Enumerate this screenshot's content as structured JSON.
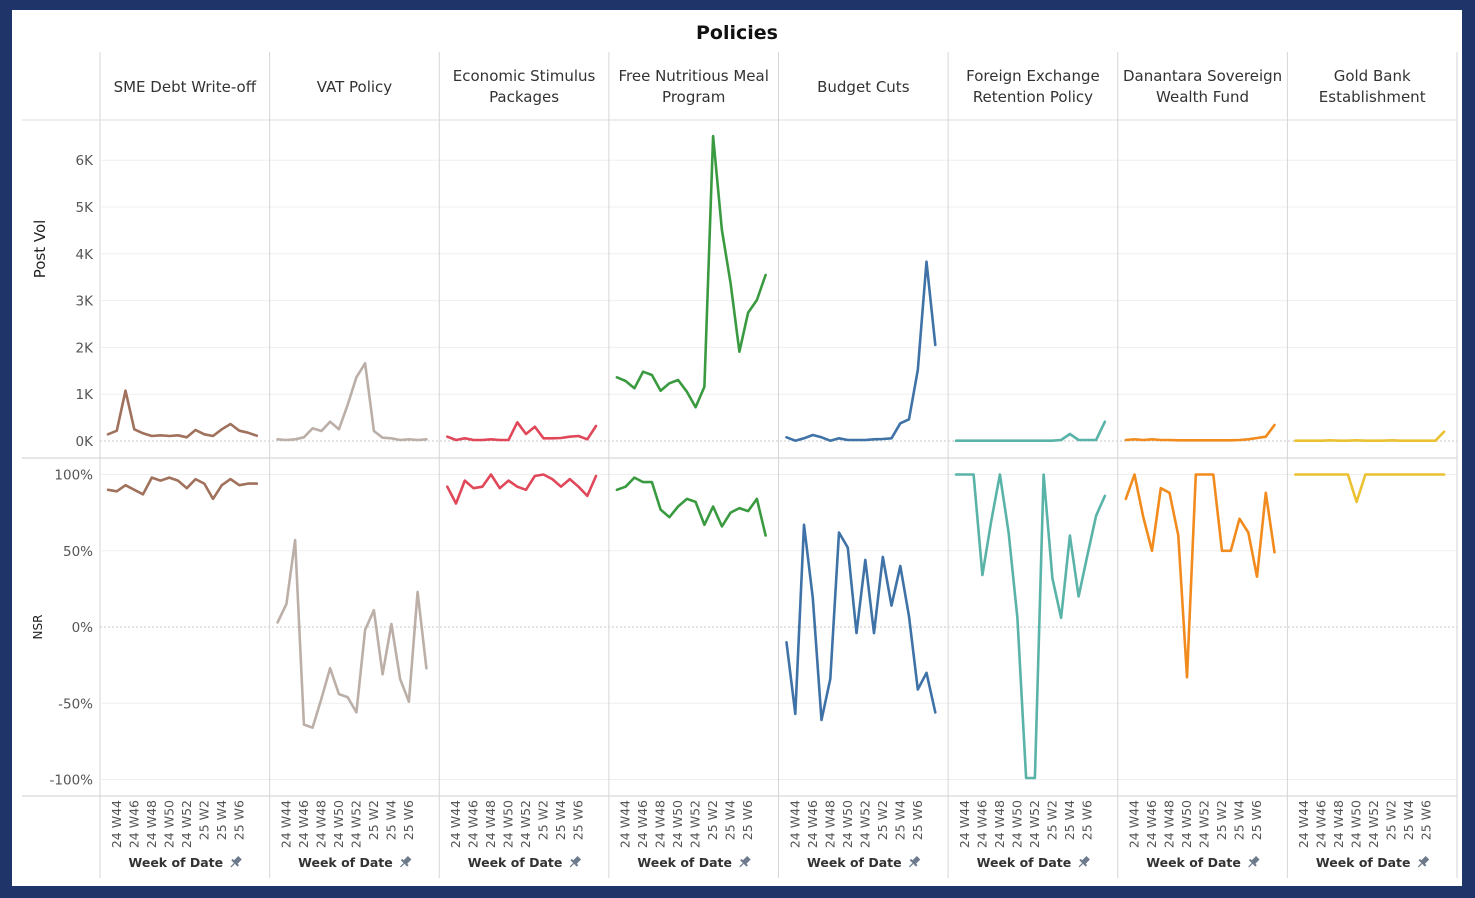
{
  "chart_data": {
    "type": "line",
    "title": "Policies",
    "layout": "small-multiples",
    "x": [
      "24 W43",
      "24 W44",
      "24 W45",
      "24 W46",
      "24 W47",
      "24 W48",
      "24 W49",
      "24 W50",
      "24 W51",
      "24 W52",
      "25 W1",
      "25 W2",
      "25 W3",
      "25 W4",
      "25 W5",
      "25 W6",
      "25 W7",
      "25 W8"
    ],
    "x_tick_labels": [
      "24 W44",
      "24 W46",
      "24 W48",
      "24 W50",
      "24 W52",
      "25 W2",
      "25 W4",
      "25 W6"
    ],
    "xlabel": "Week of Date",
    "xlabel_icon": "pin-icon",
    "rows": [
      {
        "key": "post_vol",
        "ylabel": "Post Vol",
        "ylim": [
          0,
          6000
        ],
        "ticks": [
          0,
          1000,
          2000,
          3000,
          4000,
          5000,
          6000
        ],
        "tick_labels": [
          "0K",
          "1K",
          "2K",
          "3K",
          "4K",
          "5K",
          "6K"
        ]
      },
      {
        "key": "nsr",
        "ylabel": "NSR",
        "ylim": [
          -100,
          100
        ],
        "ticks": [
          -100,
          -50,
          0,
          50,
          100
        ],
        "tick_labels": [
          "-100%",
          "-50%",
          "0%",
          "50%",
          "100%"
        ]
      }
    ],
    "grid": true,
    "series": [
      {
        "name": "SME Debt Write-off",
        "header_lines": [
          "SME Debt Write-off"
        ],
        "color": "#a0715c",
        "post_vol": [
          143,
          220,
          1075,
          250,
          165,
          107,
          122,
          107,
          122,
          79,
          235,
          143,
          107,
          250,
          363,
          220,
          177,
          113
        ],
        "nsr": [
          90,
          89,
          93,
          90,
          87,
          98,
          96,
          98,
          96,
          91,
          97,
          94,
          84,
          93,
          97,
          93,
          94,
          94
        ]
      },
      {
        "name": "VAT Policy",
        "header_lines": [
          "VAT Policy"
        ],
        "color": "#bcafa8",
        "post_vol": [
          36,
          21,
          36,
          79,
          271,
          214,
          412,
          250,
          769,
          1361,
          1660,
          214,
          71,
          58,
          21,
          36,
          21,
          36
        ],
        "nsr": [
          3,
          15,
          57,
          -64,
          -66,
          -47,
          -27,
          -44,
          -46,
          -56,
          -2,
          11,
          -31,
          2,
          -34,
          -49,
          23,
          -27
        ]
      },
      {
        "name": "Economic Stimulus Packages",
        "header_lines": [
          "Economic Stimulus",
          "Packages"
        ],
        "color": "#e0485a",
        "post_vol": [
          92,
          21,
          58,
          21,
          21,
          36,
          21,
          21,
          400,
          150,
          306,
          58,
          58,
          64,
          92,
          107,
          36,
          320
        ],
        "nsr": [
          92,
          81,
          96,
          91,
          92,
          100,
          91,
          96,
          92,
          90,
          99,
          100,
          97,
          92,
          97,
          92,
          86,
          99
        ]
      },
      {
        "name": "Free Nutritious Meal Program",
        "header_lines": [
          "Free Nutritious Meal",
          "Program"
        ],
        "color": "#3a9a40",
        "post_vol": [
          1361,
          1282,
          1126,
          1481,
          1410,
          1075,
          1233,
          1303,
          1053,
          720,
          1160,
          6517,
          4509,
          3370,
          1908,
          2741,
          3013,
          3547
        ],
        "nsr": [
          90,
          92,
          98,
          95,
          95,
          77,
          72,
          79,
          84,
          82,
          67,
          79,
          66,
          75,
          78,
          76,
          84,
          60
        ]
      },
      {
        "name": "Budget Cuts",
        "header_lines": [
          "Budget Cuts"
        ],
        "color": "#3f72a6",
        "post_vol": [
          79,
          6,
          58,
          128,
          79,
          6,
          58,
          21,
          21,
          21,
          36,
          43,
          58,
          378,
          464,
          1517,
          3831,
          2051
        ],
        "nsr": [
          -10,
          -57,
          67,
          19,
          -61,
          -34,
          62,
          52,
          -4,
          44,
          -4,
          46,
          14,
          40,
          7,
          -41,
          -30,
          -56
        ]
      },
      {
        "name": "Foreign Exchange Retention Policy",
        "header_lines": [
          "Foreign Exchange",
          "Retention Policy"
        ],
        "color": "#5ab3a8",
        "post_vol": [
          6,
          6,
          6,
          6,
          6,
          6,
          6,
          6,
          6,
          6,
          6,
          6,
          21,
          150,
          21,
          21,
          21,
          412
        ],
        "nsr": [
          100,
          100,
          100,
          34,
          69,
          100,
          62,
          6,
          -99,
          -99,
          100,
          32,
          6,
          60,
          20,
          47,
          73,
          86
        ]
      },
      {
        "name": "Danantara Sovereign Wealth Fund",
        "header_lines": [
          "Danantara Sovereign",
          "Wealth Fund"
        ],
        "color": "#f28b1e",
        "post_vol": [
          21,
          36,
          21,
          36,
          21,
          21,
          14,
          14,
          14,
          14,
          14,
          14,
          14,
          21,
          36,
          64,
          92,
          342
        ],
        "nsr": [
          84,
          100,
          72,
          50,
          91,
          88,
          60,
          -33,
          100,
          100,
          100,
          50,
          50,
          71,
          62,
          33,
          88,
          49
        ]
      },
      {
        "name": "Gold Bank Establishment",
        "header_lines": [
          "Gold Bank",
          "Establishment"
        ],
        "color": "#ebc132",
        "post_vol": [
          6,
          6,
          6,
          6,
          14,
          6,
          6,
          14,
          6,
          6,
          6,
          14,
          6,
          6,
          6,
          6,
          6,
          199
        ],
        "nsr": [
          100,
          100,
          100,
          100,
          100,
          100,
          100,
          82,
          100,
          100,
          100,
          100,
          100,
          100,
          100,
          100,
          100,
          100
        ]
      }
    ]
  }
}
